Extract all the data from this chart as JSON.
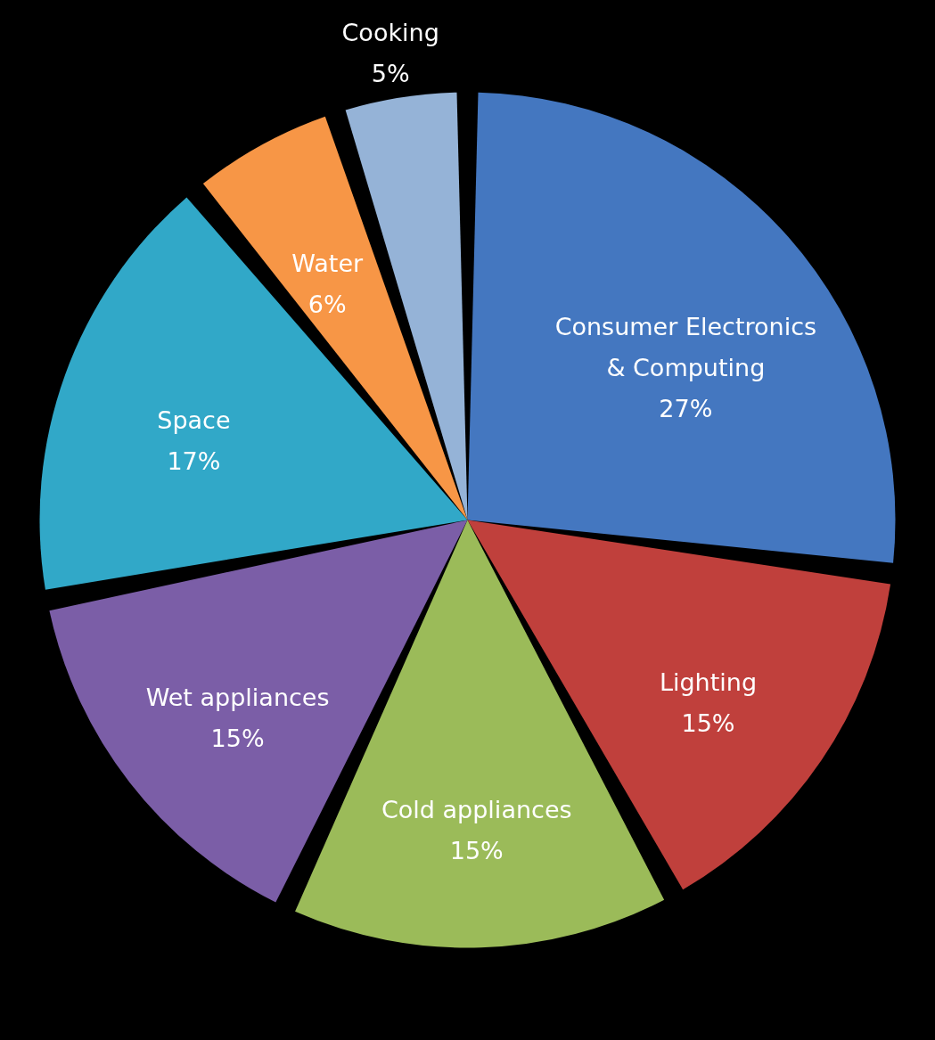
{
  "chart_data": {
    "type": "pie",
    "categories": [
      "Consumer Electronics & Computing",
      "Lighting",
      "Cold appliances",
      "Wet appliances",
      "Space",
      "Water",
      "Cooking"
    ],
    "values": [
      27,
      15,
      15,
      15,
      17,
      6,
      5
    ],
    "value_labels": [
      "27%",
      "15%",
      "15%",
      "15%",
      "17%",
      "6%",
      "5%"
    ],
    "colors": [
      "#4477c0",
      "#c0403c",
      "#9bbb59",
      "#7b5ea7",
      "#31a8c8",
      "#f79646",
      "#95b3d7"
    ]
  }
}
